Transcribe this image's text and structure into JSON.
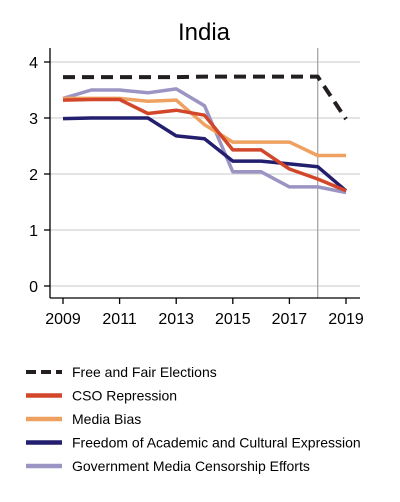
{
  "chart_data": {
    "type": "line",
    "title": "India",
    "xlabel": "",
    "ylabel": "",
    "xlim": [
      2009,
      2019
    ],
    "ylim": [
      0,
      4
    ],
    "x_ticks": [
      2009,
      2011,
      2013,
      2015,
      2017,
      2019
    ],
    "y_ticks": [
      0,
      1,
      2,
      3,
      4
    ],
    "grid": "horizontal",
    "vertical_reference_line_x": 2018,
    "legend_position": "bottom",
    "series": [
      {
        "name": "Free and Fair Elections",
        "color": "#231f20",
        "dashed": true,
        "x": [
          2009,
          2010,
          2011,
          2012,
          2013,
          2014,
          2015,
          2016,
          2017,
          2018,
          2019
        ],
        "values": [
          3.73,
          3.73,
          3.73,
          3.73,
          3.73,
          3.74,
          3.74,
          3.74,
          3.74,
          3.74,
          2.98
        ]
      },
      {
        "name": "CSO Repression",
        "color": "#d2462a",
        "dashed": false,
        "x": [
          2009,
          2010,
          2011,
          2012,
          2013,
          2014,
          2015,
          2016,
          2017,
          2018,
          2019
        ],
        "values": [
          3.32,
          3.33,
          3.33,
          3.08,
          3.14,
          3.05,
          2.43,
          2.43,
          2.09,
          1.91,
          1.7
        ]
      },
      {
        "name": "Media Bias",
        "color": "#eea160",
        "dashed": false,
        "x": [
          2009,
          2010,
          2011,
          2012,
          2013,
          2014,
          2015,
          2016,
          2017,
          2018,
          2019
        ],
        "values": [
          3.35,
          3.35,
          3.35,
          3.3,
          3.32,
          2.88,
          2.57,
          2.57,
          2.57,
          2.33,
          2.33
        ]
      },
      {
        "name": "Freedom of Academic and Cultural Expression",
        "color": "#241e6e",
        "dashed": false,
        "x": [
          2009,
          2010,
          2011,
          2012,
          2013,
          2014,
          2015,
          2016,
          2017,
          2018,
          2019
        ],
        "values": [
          2.99,
          3.0,
          3.0,
          3.0,
          2.68,
          2.63,
          2.23,
          2.23,
          2.18,
          2.13,
          1.7
        ]
      },
      {
        "name": "Government Media Censorship Efforts",
        "color": "#9b95c4",
        "dashed": false,
        "x": [
          2009,
          2010,
          2011,
          2012,
          2013,
          2014,
          2015,
          2016,
          2017,
          2018,
          2019
        ],
        "values": [
          3.35,
          3.5,
          3.5,
          3.45,
          3.52,
          3.22,
          2.04,
          2.04,
          1.77,
          1.77,
          1.67
        ]
      }
    ]
  }
}
